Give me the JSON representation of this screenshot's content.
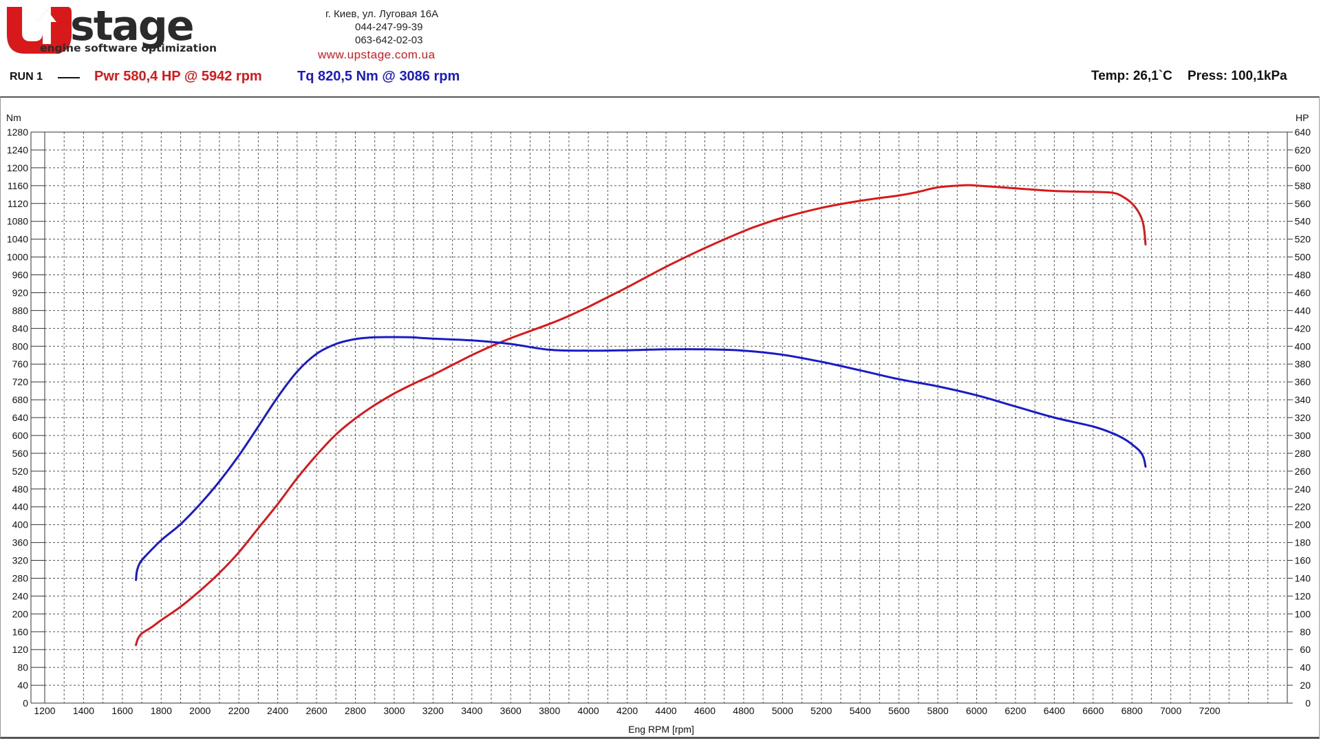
{
  "header": {
    "logo_main": "U",
    "logo_word": "stage",
    "logo_tagline": "engine software optimization",
    "address": "г. Киев, ул. Луговая 16А",
    "phone1": "044-247-99-39",
    "phone2": "063-642-02-03",
    "website": "www.upstage.com.ua",
    "run_label": "RUN 1",
    "pwr_summary": "Pwr  580,4 HP @ 5942 rpm",
    "tq_summary": "Tq 820,5 Nm @ 3086 rpm",
    "temp": "Temp: 26,1`C",
    "press": "Press: 100,1kPa"
  },
  "colors": {
    "power": "#d7191c",
    "torque": "#1a1ac6",
    "grid": "#555555"
  },
  "chart_data": {
    "type": "line",
    "xlabel": "Eng RPM [rpm]",
    "ylabel_left": "Nm",
    "ylabel_right": "HP",
    "xlim": [
      1200,
      7600
    ],
    "ylim_left": [
      0,
      1280
    ],
    "ylim_right": [
      0,
      640
    ],
    "x_ticks": [
      1200,
      1400,
      1600,
      1800,
      2000,
      2200,
      2400,
      2600,
      2800,
      3000,
      3200,
      3400,
      3600,
      3800,
      4000,
      4200,
      4400,
      4600,
      4800,
      5000,
      5200,
      5400,
      5600,
      5800,
      6000,
      6200,
      6400,
      6600,
      6800,
      7000,
      7200
    ],
    "y_left_ticks": [
      0,
      40,
      80,
      120,
      160,
      200,
      240,
      280,
      320,
      360,
      400,
      440,
      480,
      520,
      560,
      600,
      640,
      680,
      720,
      760,
      800,
      840,
      880,
      920,
      960,
      1000,
      1040,
      1080,
      1120,
      1160,
      1200,
      1240,
      1280
    ],
    "y_right_ticks": [
      0,
      20,
      40,
      60,
      80,
      100,
      120,
      140,
      160,
      180,
      200,
      220,
      240,
      260,
      280,
      300,
      320,
      340,
      360,
      380,
      400,
      420,
      440,
      460,
      480,
      500,
      520,
      540,
      560,
      580,
      600,
      620,
      640
    ],
    "grid": true,
    "series": [
      {
        "name": "Pwr",
        "axis": "right",
        "color": "#d7191c",
        "x": [
          1670,
          1680,
          1700,
          1750,
          1800,
          1900,
          2000,
          2100,
          2200,
          2300,
          2400,
          2500,
          2600,
          2700,
          2800,
          2900,
          3000,
          3100,
          3200,
          3300,
          3400,
          3500,
          3600,
          3700,
          3800,
          3900,
          4000,
          4100,
          4200,
          4400,
          4600,
          4800,
          4900,
          5000,
          5200,
          5400,
          5600,
          5700,
          5800,
          5942,
          6000,
          6200,
          6400,
          6600,
          6700,
          6750,
          6800,
          6840,
          6860,
          6870
        ],
        "y": [
          65,
          72,
          78,
          85,
          93,
          108,
          126,
          146,
          169,
          196,
          223,
          252,
          278,
          301,
          319,
          334,
          347,
          358,
          368,
          379,
          390,
          400,
          409,
          417,
          425,
          434,
          444,
          455,
          466,
          489,
          510,
          529,
          537,
          544,
          555,
          563,
          569,
          573,
          578,
          580.4,
          580,
          577,
          574,
          573,
          572,
          568,
          560,
          548,
          535,
          514
        ]
      },
      {
        "name": "Tq",
        "axis": "left",
        "color": "#1a1ac6",
        "x": [
          1670,
          1675,
          1690,
          1720,
          1800,
          1900,
          2000,
          2100,
          2200,
          2300,
          2400,
          2500,
          2600,
          2700,
          2800,
          2900,
          3000,
          3086,
          3200,
          3400,
          3600,
          3800,
          4000,
          4200,
          4400,
          4600,
          4800,
          5000,
          5200,
          5400,
          5600,
          5800,
          6000,
          6200,
          6400,
          6600,
          6700,
          6760,
          6800,
          6840,
          6860,
          6870
        ],
        "y": [
          276,
          296,
          314,
          330,
          365,
          401,
          446,
          497,
          555,
          620,
          686,
          743,
          783,
          805,
          816,
          820,
          820.5,
          820,
          817,
          813,
          805,
          792,
          790,
          791,
          793,
          793,
          790,
          781,
          765,
          746,
          726,
          710,
          690,
          665,
          640,
          620,
          605,
          592,
          580,
          565,
          550,
          530
        ]
      }
    ]
  }
}
